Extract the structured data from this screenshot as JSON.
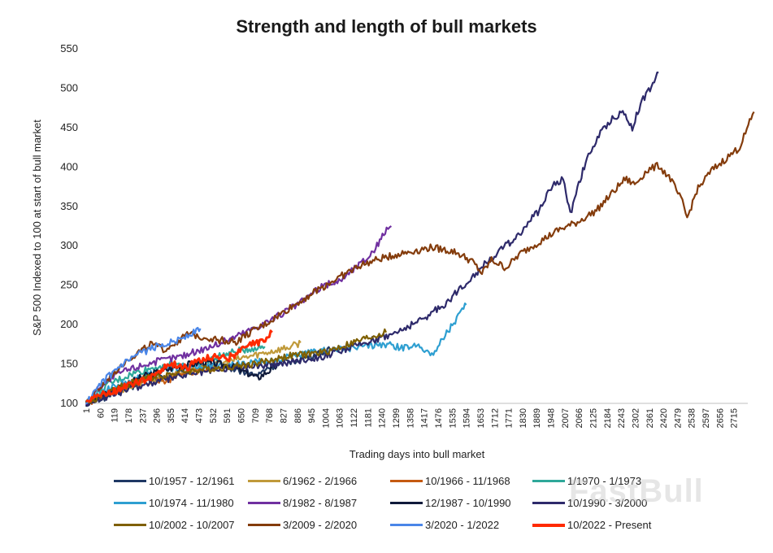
{
  "chart_data": {
    "type": "line",
    "title": "Strength and length of bull markets",
    "xlabel": "Trading days into bull market",
    "ylabel": "S&P 500 Indexed to 100 at start of bull market",
    "ylim": [
      100,
      550
    ],
    "xlim": [
      1,
      2774
    ],
    "yticks": [
      100,
      150,
      200,
      250,
      300,
      350,
      400,
      450,
      500,
      550
    ],
    "xticks": [
      1,
      60,
      119,
      178,
      237,
      296,
      355,
      414,
      473,
      532,
      591,
      650,
      709,
      768,
      827,
      886,
      945,
      1004,
      1063,
      1122,
      1181,
      1240,
      1299,
      1358,
      1417,
      1476,
      1535,
      1594,
      1653,
      1712,
      1771,
      1830,
      1889,
      1948,
      2007,
      2066,
      2125,
      2184,
      2243,
      2302,
      2361,
      2420,
      2479,
      2538,
      2597,
      2656,
      2715
    ],
    "series": [
      {
        "name": "10/1957 - 12/1961",
        "color": "#1f3864",
        "points": [
          [
            1,
            100
          ],
          [
            120,
            112
          ],
          [
            250,
            128
          ],
          [
            400,
            140
          ],
          [
            560,
            150
          ],
          [
            640,
            142
          ],
          [
            720,
            135
          ],
          [
            760,
            145
          ],
          [
            840,
            152
          ],
          [
            920,
            158
          ],
          [
            1000,
            165
          ],
          [
            1060,
            172
          ]
        ]
      },
      {
        "name": "6/1962 - 2/1966",
        "color": "#c09a3a",
        "points": [
          [
            1,
            100
          ],
          [
            80,
            112
          ],
          [
            180,
            120
          ],
          [
            300,
            130
          ],
          [
            420,
            140
          ],
          [
            560,
            150
          ],
          [
            660,
            158
          ],
          [
            760,
            165
          ],
          [
            860,
            172
          ],
          [
            900,
            177
          ]
        ]
      },
      {
        "name": "10/1966 - 11/1968",
        "color": "#c55a11",
        "points": [
          [
            1,
            100
          ],
          [
            90,
            113
          ],
          [
            180,
            125
          ],
          [
            260,
            133
          ],
          [
            330,
            128
          ],
          [
            400,
            137
          ],
          [
            460,
            140
          ],
          [
            540,
            145
          ]
        ]
      },
      {
        "name": "1/1970 - 1/1973",
        "color": "#2ea89a",
        "points": [
          [
            1,
            100
          ],
          [
            100,
            125
          ],
          [
            200,
            138
          ],
          [
            280,
            145
          ],
          [
            360,
            150
          ],
          [
            460,
            148
          ],
          [
            560,
            160
          ],
          [
            660,
            168
          ],
          [
            750,
            172
          ]
        ]
      },
      {
        "name": "10/1974 - 11/1980",
        "color": "#2e9fd1",
        "points": [
          [
            1,
            100
          ],
          [
            100,
            120
          ],
          [
            200,
            130
          ],
          [
            350,
            145
          ],
          [
            500,
            148
          ],
          [
            650,
            150
          ],
          [
            800,
            155
          ],
          [
            950,
            165
          ],
          [
            1100,
            170
          ],
          [
            1250,
            175
          ],
          [
            1330,
            170
          ],
          [
            1400,
            175
          ],
          [
            1450,
            160
          ],
          [
            1500,
            185
          ],
          [
            1560,
            210
          ],
          [
            1594,
            225
          ]
        ]
      },
      {
        "name": "8/1982 - 8/1987",
        "color": "#7030a0",
        "points": [
          [
            1,
            100
          ],
          [
            60,
            122
          ],
          [
            150,
            140
          ],
          [
            250,
            150
          ],
          [
            400,
            160
          ],
          [
            550,
            175
          ],
          [
            700,
            195
          ],
          [
            800,
            210
          ],
          [
            900,
            228
          ],
          [
            950,
            240
          ],
          [
            1000,
            250
          ],
          [
            1060,
            255
          ],
          [
            1120,
            270
          ],
          [
            1180,
            285
          ],
          [
            1220,
            300
          ],
          [
            1260,
            322
          ],
          [
            1280,
            325
          ]
        ]
      },
      {
        "name": "12/1987 - 10/1990",
        "color": "#0f1a3a",
        "points": [
          [
            1,
            100
          ],
          [
            100,
            115
          ],
          [
            250,
            135
          ],
          [
            400,
            148
          ],
          [
            500,
            152
          ],
          [
            600,
            148
          ],
          [
            680,
            138
          ],
          [
            720,
            132
          ],
          [
            760,
            140
          ],
          [
            800,
            147
          ]
        ]
      },
      {
        "name": "10/1990 - 3/2000",
        "color": "#2e2a6b",
        "points": [
          [
            1,
            100
          ],
          [
            200,
            120
          ],
          [
            400,
            135
          ],
          [
            600,
            145
          ],
          [
            800,
            150
          ],
          [
            1000,
            160
          ],
          [
            1100,
            170
          ],
          [
            1200,
            180
          ],
          [
            1300,
            190
          ],
          [
            1400,
            205
          ],
          [
            1500,
            225
          ],
          [
            1600,
            255
          ],
          [
            1700,
            285
          ],
          [
            1800,
            310
          ],
          [
            1900,
            345
          ],
          [
            1950,
            375
          ],
          [
            2000,
            385
          ],
          [
            2030,
            340
          ],
          [
            2060,
            375
          ],
          [
            2100,
            410
          ],
          [
            2150,
            440
          ],
          [
            2200,
            460
          ],
          [
            2250,
            470
          ],
          [
            2290,
            450
          ],
          [
            2330,
            485
          ],
          [
            2370,
            500
          ],
          [
            2400,
            520
          ]
        ]
      },
      {
        "name": "10/2002 - 10/2007",
        "color": "#7f6000",
        "points": [
          [
            1,
            100
          ],
          [
            120,
            118
          ],
          [
            250,
            132
          ],
          [
            400,
            140
          ],
          [
            550,
            145
          ],
          [
            700,
            150
          ],
          [
            850,
            160
          ],
          [
            1000,
            165
          ],
          [
            1100,
            175
          ],
          [
            1200,
            185
          ],
          [
            1258,
            190
          ]
        ]
      },
      {
        "name": "3/2009 - 2/2020",
        "color": "#843c0c",
        "points": [
          [
            1,
            100
          ],
          [
            150,
            150
          ],
          [
            270,
            175
          ],
          [
            330,
            168
          ],
          [
            430,
            188
          ],
          [
            530,
            182
          ],
          [
            630,
            178
          ],
          [
            680,
            188
          ],
          [
            750,
            200
          ],
          [
            850,
            220
          ],
          [
            950,
            240
          ],
          [
            1050,
            258
          ],
          [
            1150,
            275
          ],
          [
            1250,
            285
          ],
          [
            1350,
            292
          ],
          [
            1450,
            298
          ],
          [
            1550,
            292
          ],
          [
            1620,
            280
          ],
          [
            1660,
            265
          ],
          [
            1700,
            282
          ],
          [
            1760,
            272
          ],
          [
            1820,
            290
          ],
          [
            1900,
            305
          ],
          [
            1980,
            320
          ],
          [
            2060,
            330
          ],
          [
            2140,
            345
          ],
          [
            2200,
            365
          ],
          [
            2260,
            385
          ],
          [
            2300,
            378
          ],
          [
            2350,
            395
          ],
          [
            2400,
            402
          ],
          [
            2450,
            385
          ],
          [
            2500,
            355
          ],
          [
            2520,
            335
          ],
          [
            2560,
            370
          ],
          [
            2620,
            395
          ],
          [
            2680,
            410
          ],
          [
            2740,
            425
          ],
          [
            2800,
            470
          ]
        ]
      },
      {
        "name": "3/2020 - 1/2022",
        "color": "#4a86e8",
        "points": [
          [
            1,
            100
          ],
          [
            80,
            130
          ],
          [
            160,
            150
          ],
          [
            240,
            165
          ],
          [
            320,
            175
          ],
          [
            380,
            180
          ],
          [
            440,
            188
          ],
          [
            480,
            195
          ]
        ]
      },
      {
        "name": "10/2022 - Present",
        "color": "#ff2a00",
        "points": [
          [
            1,
            105
          ],
          [
            60,
            110
          ],
          [
            120,
            115
          ],
          [
            180,
            125
          ],
          [
            240,
            128
          ],
          [
            300,
            140
          ],
          [
            360,
            150
          ],
          [
            420,
            145
          ],
          [
            480,
            155
          ],
          [
            540,
            160
          ],
          [
            600,
            158
          ],
          [
            640,
            165
          ],
          [
            700,
            175
          ],
          [
            740,
            180
          ],
          [
            780,
            190
          ]
        ]
      }
    ]
  },
  "watermark": "FastBull"
}
